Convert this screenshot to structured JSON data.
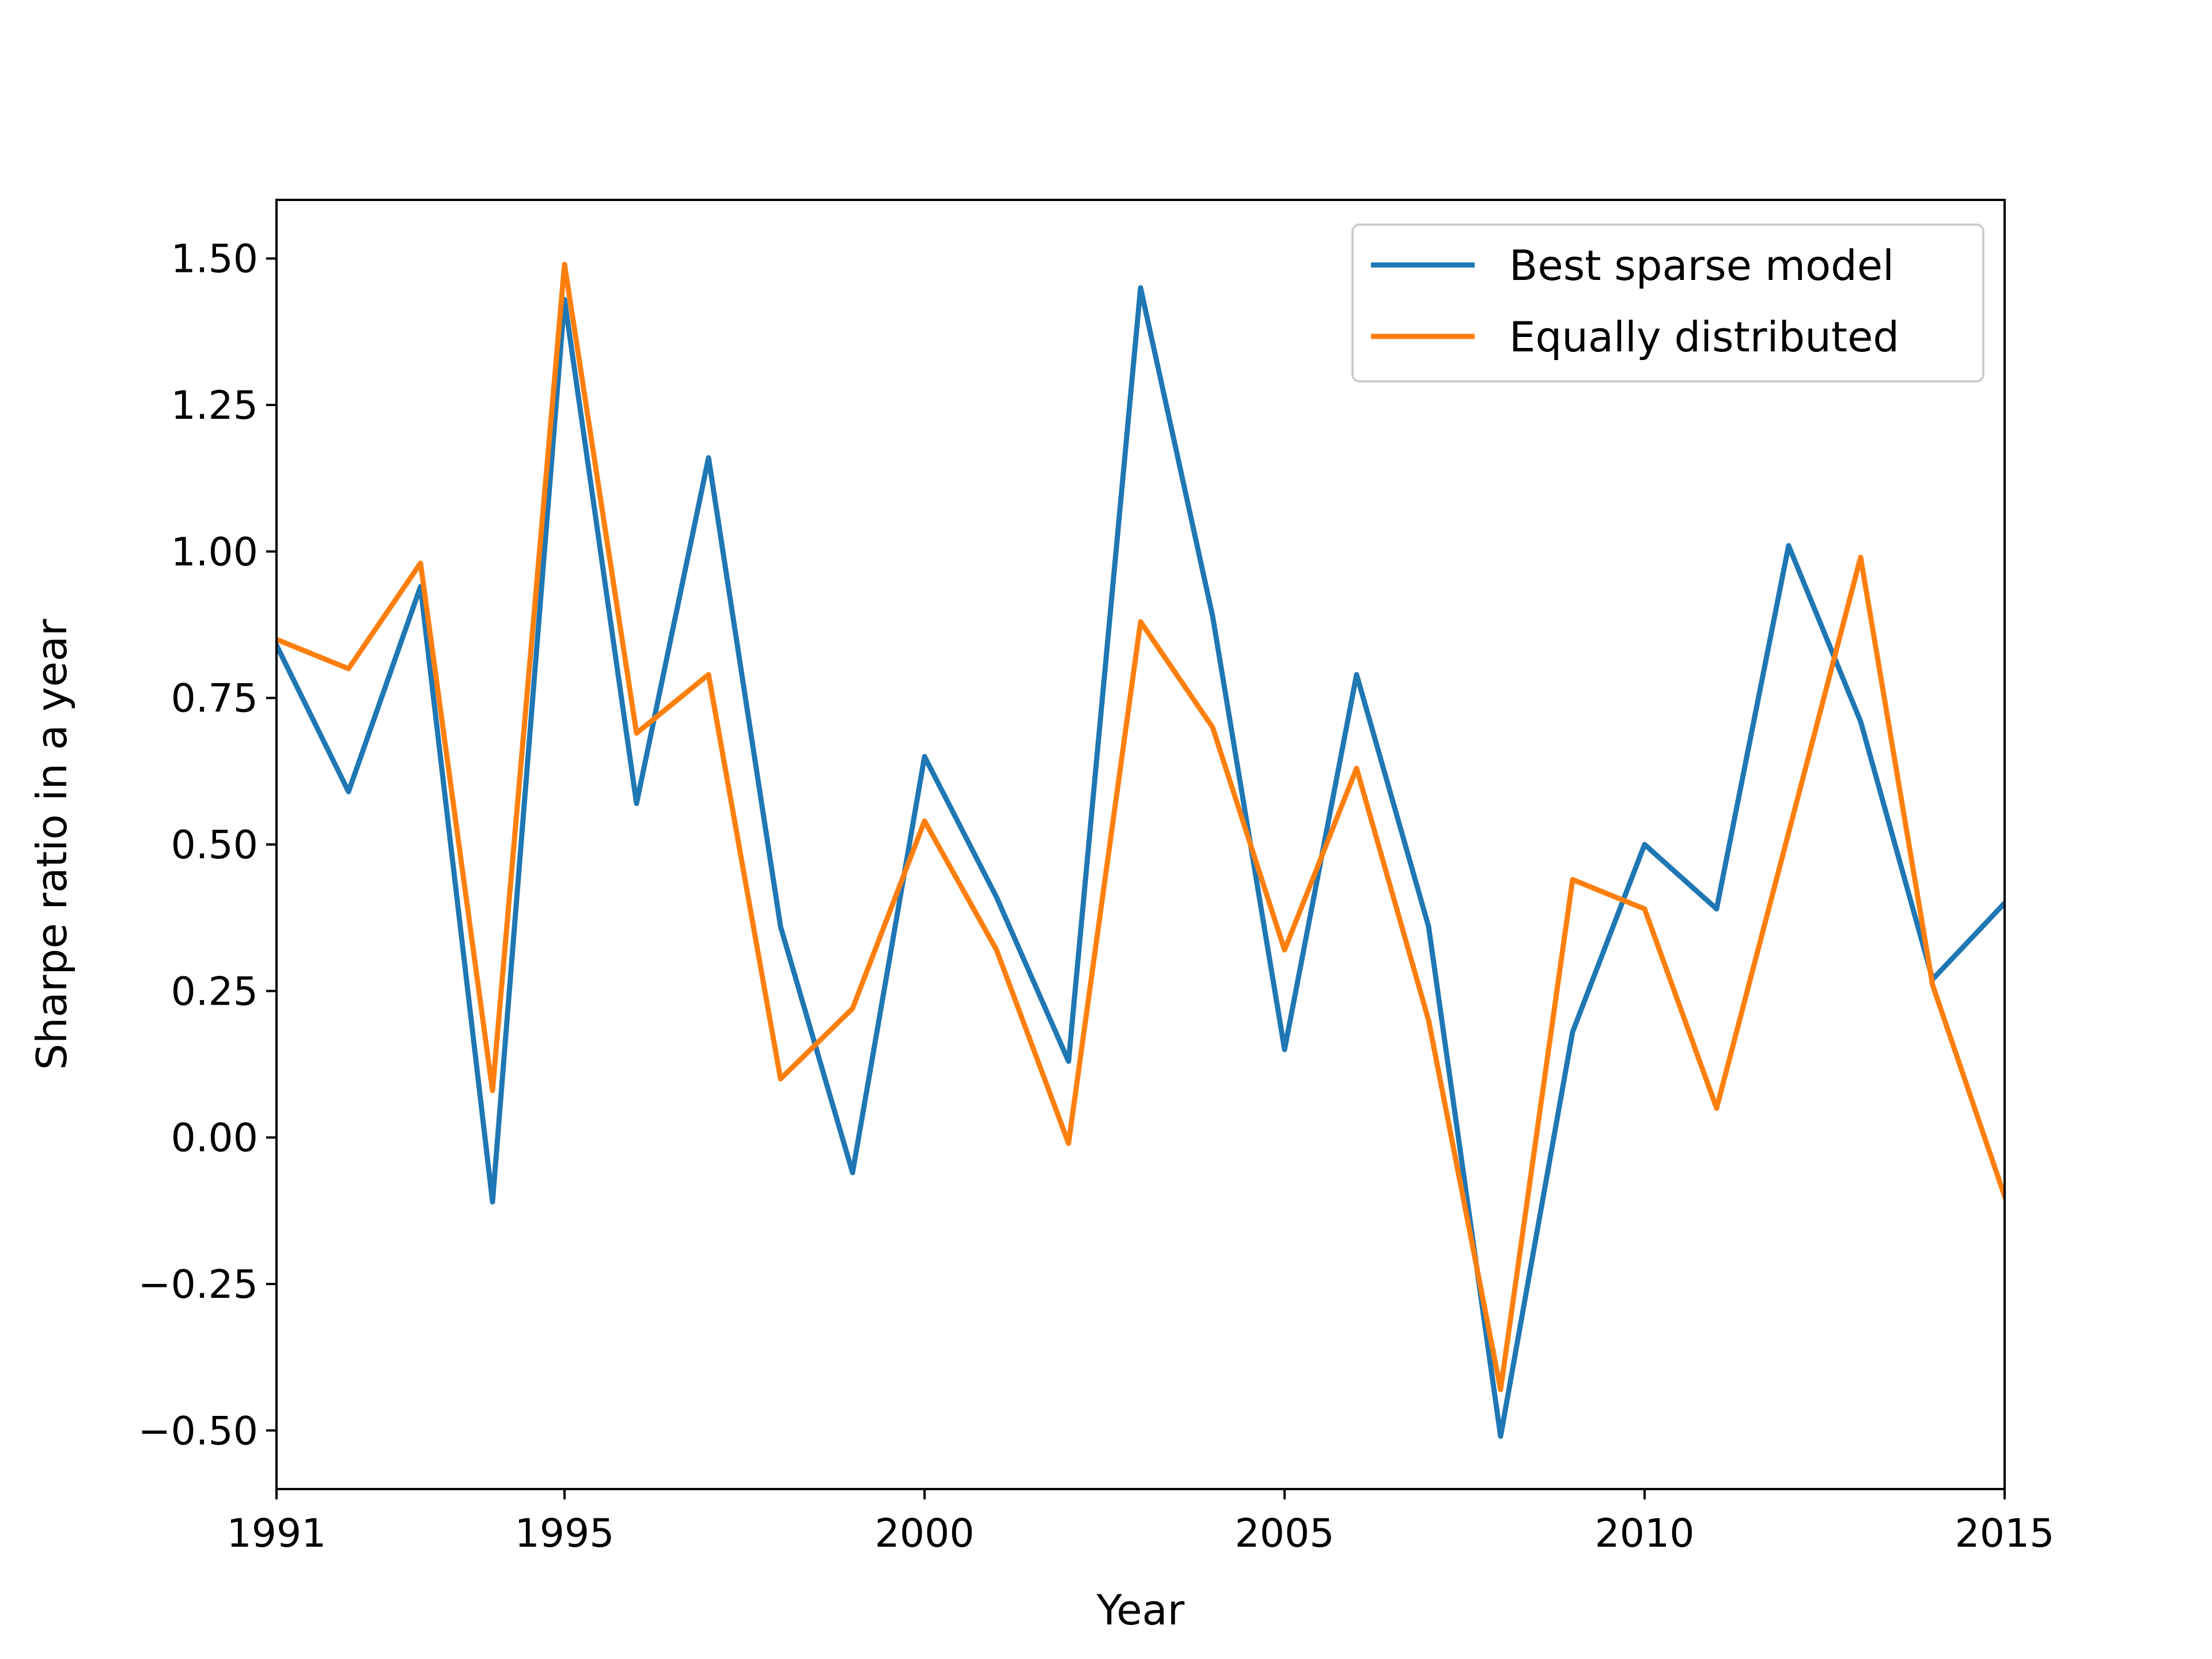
{
  "chart_data": {
    "type": "line",
    "title": "",
    "xlabel": "Year",
    "ylabel": "Sharpe ratio in a year",
    "xlim": [
      1991,
      2015
    ],
    "ylim": [
      -0.6,
      1.6
    ],
    "xticks": [
      1991,
      1995,
      2000,
      2005,
      2010,
      2015
    ],
    "xtick_labels": [
      "1991",
      "1995",
      "2000",
      "2005",
      "2010",
      "2015"
    ],
    "yticks": [
      -0.5,
      -0.25,
      0.0,
      0.25,
      0.5,
      0.75,
      1.0,
      1.25,
      1.5
    ],
    "ytick_labels": [
      "−0.50",
      "−0.25",
      "0.00",
      "0.25",
      "0.50",
      "0.75",
      "1.00",
      "1.25",
      "1.50"
    ],
    "grid": false,
    "legend_position": "top-right",
    "x": [
      1991,
      1992,
      1993,
      1994,
      1995,
      1996,
      1997,
      1998,
      1999,
      2000,
      2001,
      2002,
      2003,
      2004,
      2005,
      2006,
      2007,
      2008,
      2009,
      2010,
      2011,
      2012,
      2013,
      2014,
      2015
    ],
    "series": [
      {
        "name": "Best sparse model",
        "color": "#1f77b4",
        "values": [
          0.84,
          0.59,
          0.94,
          -0.11,
          1.43,
          0.57,
          1.16,
          0.36,
          -0.06,
          0.65,
          0.41,
          0.13,
          1.45,
          0.89,
          0.15,
          0.79,
          0.36,
          -0.51,
          0.18,
          0.5,
          0.39,
          1.01,
          0.71,
          0.27,
          0.4
        ]
      },
      {
        "name": "Equally distributed",
        "color": "#ff7f0e",
        "values": [
          0.85,
          0.8,
          0.98,
          0.08,
          1.49,
          0.69,
          0.79,
          0.1,
          0.22,
          0.54,
          0.32,
          -0.01,
          0.88,
          0.7,
          0.32,
          0.63,
          0.2,
          -0.43,
          0.44,
          0.39,
          0.05,
          0.52,
          0.99,
          0.26,
          -0.1
        ]
      }
    ]
  }
}
